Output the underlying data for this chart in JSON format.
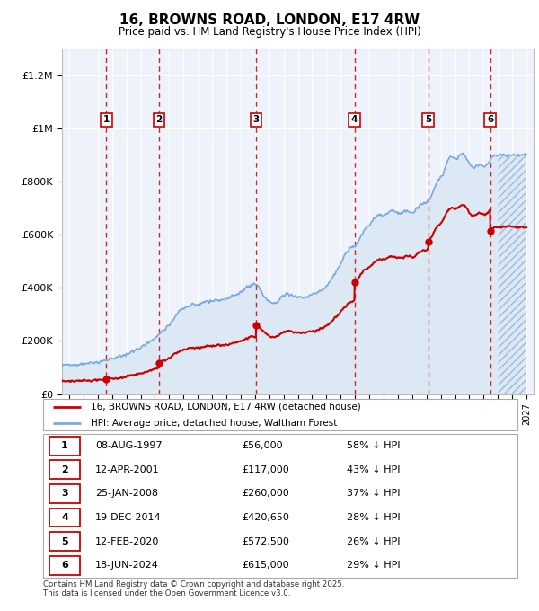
{
  "title": "16, BROWNS ROAD, LONDON, E17 4RW",
  "subtitle": "Price paid vs. HM Land Registry's House Price Index (HPI)",
  "ylim": [
    0,
    1300000
  ],
  "xlim": [
    1994.5,
    2027.5
  ],
  "yticks": [
    0,
    200000,
    400000,
    600000,
    800000,
    1000000,
    1200000
  ],
  "ytick_labels": [
    "£0",
    "£200K",
    "£400K",
    "£600K",
    "£800K",
    "£1M",
    "£1.2M"
  ],
  "xticks": [
    1995,
    1996,
    1997,
    1998,
    1999,
    2000,
    2001,
    2002,
    2003,
    2004,
    2005,
    2006,
    2007,
    2008,
    2009,
    2010,
    2011,
    2012,
    2013,
    2014,
    2015,
    2016,
    2017,
    2018,
    2019,
    2020,
    2021,
    2022,
    2023,
    2024,
    2025,
    2026,
    2027
  ],
  "sales": [
    {
      "date": 1997.6,
      "price": 56000,
      "label": "1"
    },
    {
      "date": 2001.28,
      "price": 117000,
      "label": "2"
    },
    {
      "date": 2008.07,
      "price": 260000,
      "label": "3"
    },
    {
      "date": 2014.97,
      "price": 420650,
      "label": "4"
    },
    {
      "date": 2020.12,
      "price": 572500,
      "label": "5"
    },
    {
      "date": 2024.46,
      "price": 615000,
      "label": "6"
    }
  ],
  "sale_color": "#cc0000",
  "hpi_color": "#7aaadd",
  "hpi_fill": "#dde8f5",
  "bg_color": "#eef2fa",
  "grid_color": "#ffffff",
  "vline_color": "#cc0000",
  "hpi_points": [
    [
      1995.0,
      110000
    ],
    [
      1995.08,
      109000
    ],
    [
      1995.17,
      109500
    ],
    [
      1995.25,
      110000
    ],
    [
      1995.33,
      110500
    ],
    [
      1995.42,
      111000
    ],
    [
      1995.5,
      111500
    ],
    [
      1995.58,
      112000
    ],
    [
      1995.67,
      112000
    ],
    [
      1995.75,
      112500
    ],
    [
      1995.83,
      113000
    ],
    [
      1995.92,
      113500
    ],
    [
      1996.0,
      114000
    ],
    [
      1996.08,
      114500
    ],
    [
      1996.17,
      115000
    ],
    [
      1996.25,
      115500
    ],
    [
      1996.33,
      116000
    ],
    [
      1996.42,
      116500
    ],
    [
      1996.5,
      117000
    ],
    [
      1996.58,
      117500
    ],
    [
      1996.67,
      118000
    ],
    [
      1996.75,
      118500
    ],
    [
      1996.83,
      119000
    ],
    [
      1996.92,
      119500
    ],
    [
      1997.0,
      120000
    ],
    [
      1997.08,
      121000
    ],
    [
      1997.17,
      122000
    ],
    [
      1997.25,
      123000
    ],
    [
      1997.33,
      124000
    ],
    [
      1997.42,
      125000
    ],
    [
      1997.5,
      126000
    ],
    [
      1997.58,
      127000
    ],
    [
      1997.67,
      128000
    ],
    [
      1997.75,
      129000
    ],
    [
      1997.83,
      130000
    ],
    [
      1997.92,
      131000
    ],
    [
      1998.0,
      132000
    ],
    [
      1998.08,
      133500
    ],
    [
      1998.17,
      135000
    ],
    [
      1998.25,
      136500
    ],
    [
      1998.33,
      138000
    ],
    [
      1998.42,
      139500
    ],
    [
      1998.5,
      141000
    ],
    [
      1998.58,
      142500
    ],
    [
      1998.67,
      144000
    ],
    [
      1998.75,
      145500
    ],
    [
      1998.83,
      147000
    ],
    [
      1998.92,
      148500
    ],
    [
      1999.0,
      150000
    ],
    [
      1999.08,
      152000
    ],
    [
      1999.17,
      154000
    ],
    [
      1999.25,
      156000
    ],
    [
      1999.33,
      158000
    ],
    [
      1999.42,
      160000
    ],
    [
      1999.5,
      162000
    ],
    [
      1999.58,
      164000
    ],
    [
      1999.67,
      166000
    ],
    [
      1999.75,
      168000
    ],
    [
      1999.83,
      170000
    ],
    [
      1999.92,
      172000
    ],
    [
      2000.0,
      175000
    ],
    [
      2000.08,
      178000
    ],
    [
      2000.17,
      181000
    ],
    [
      2000.25,
      184000
    ],
    [
      2000.33,
      187000
    ],
    [
      2000.42,
      190000
    ],
    [
      2000.5,
      193000
    ],
    [
      2000.58,
      196000
    ],
    [
      2000.67,
      199000
    ],
    [
      2000.75,
      202000
    ],
    [
      2000.83,
      205000
    ],
    [
      2000.92,
      208000
    ],
    [
      2001.0,
      212000
    ],
    [
      2001.08,
      216000
    ],
    [
      2001.17,
      220000
    ],
    [
      2001.25,
      224000
    ],
    [
      2001.33,
      228000
    ],
    [
      2001.42,
      232000
    ],
    [
      2001.5,
      236000
    ],
    [
      2001.58,
      240000
    ],
    [
      2001.67,
      244000
    ],
    [
      2001.75,
      248000
    ],
    [
      2001.83,
      252000
    ],
    [
      2001.92,
      256000
    ],
    [
      2002.0,
      262000
    ],
    [
      2002.08,
      268000
    ],
    [
      2002.17,
      274000
    ],
    [
      2002.25,
      280000
    ],
    [
      2002.33,
      286000
    ],
    [
      2002.42,
      292000
    ],
    [
      2002.5,
      298000
    ],
    [
      2002.58,
      303000
    ],
    [
      2002.67,
      308000
    ],
    [
      2002.75,
      312000
    ],
    [
      2002.83,
      316000
    ],
    [
      2002.92,
      319000
    ],
    [
      2003.0,
      322000
    ],
    [
      2003.08,
      325000
    ],
    [
      2003.17,
      327000
    ],
    [
      2003.25,
      329000
    ],
    [
      2003.33,
      331000
    ],
    [
      2003.42,
      333000
    ],
    [
      2003.5,
      334000
    ],
    [
      2003.58,
      335000
    ],
    [
      2003.67,
      336000
    ],
    [
      2003.75,
      337000
    ],
    [
      2003.83,
      338000
    ],
    [
      2003.92,
      339000
    ],
    [
      2004.0,
      340000
    ],
    [
      2004.08,
      341000
    ],
    [
      2004.17,
      342000
    ],
    [
      2004.25,
      343000
    ],
    [
      2004.33,
      344000
    ],
    [
      2004.42,
      345000
    ],
    [
      2004.5,
      346000
    ],
    [
      2004.58,
      347000
    ],
    [
      2004.67,
      348000
    ],
    [
      2004.75,
      349000
    ],
    [
      2004.83,
      350000
    ],
    [
      2004.92,
      350500
    ],
    [
      2005.0,
      351000
    ],
    [
      2005.08,
      351500
    ],
    [
      2005.17,
      352000
    ],
    [
      2005.25,
      352500
    ],
    [
      2005.33,
      353000
    ],
    [
      2005.42,
      353500
    ],
    [
      2005.5,
      354000
    ],
    [
      2005.58,
      354500
    ],
    [
      2005.67,
      355000
    ],
    [
      2005.75,
      355500
    ],
    [
      2005.83,
      356000
    ],
    [
      2005.92,
      356500
    ],
    [
      2006.0,
      358000
    ],
    [
      2006.08,
      360000
    ],
    [
      2006.17,
      362000
    ],
    [
      2006.25,
      364000
    ],
    [
      2006.33,
      366000
    ],
    [
      2006.42,
      368000
    ],
    [
      2006.5,
      370000
    ],
    [
      2006.58,
      372000
    ],
    [
      2006.67,
      374000
    ],
    [
      2006.75,
      376000
    ],
    [
      2006.83,
      378000
    ],
    [
      2006.92,
      380000
    ],
    [
      2007.0,
      385000
    ],
    [
      2007.08,
      390000
    ],
    [
      2007.17,
      393000
    ],
    [
      2007.25,
      396000
    ],
    [
      2007.33,
      399000
    ],
    [
      2007.42,
      402000
    ],
    [
      2007.5,
      405000
    ],
    [
      2007.58,
      408000
    ],
    [
      2007.67,
      410000
    ],
    [
      2007.75,
      412000
    ],
    [
      2007.83,
      413000
    ],
    [
      2007.92,
      414000
    ],
    [
      2008.0,
      415000
    ],
    [
      2008.08,
      412000
    ],
    [
      2008.17,
      408000
    ],
    [
      2008.25,
      403000
    ],
    [
      2008.33,
      397000
    ],
    [
      2008.42,
      390000
    ],
    [
      2008.5,
      383000
    ],
    [
      2008.58,
      376000
    ],
    [
      2008.67,
      369000
    ],
    [
      2008.75,
      363000
    ],
    [
      2008.83,
      357000
    ],
    [
      2008.92,
      352000
    ],
    [
      2009.0,
      348000
    ],
    [
      2009.08,
      345000
    ],
    [
      2009.17,
      343000
    ],
    [
      2009.25,
      342000
    ],
    [
      2009.33,
      342000
    ],
    [
      2009.42,
      343000
    ],
    [
      2009.5,
      345000
    ],
    [
      2009.58,
      348000
    ],
    [
      2009.67,
      352000
    ],
    [
      2009.75,
      357000
    ],
    [
      2009.83,
      362000
    ],
    [
      2009.92,
      367000
    ],
    [
      2010.0,
      372000
    ],
    [
      2010.08,
      374000
    ],
    [
      2010.17,
      375000
    ],
    [
      2010.25,
      376000
    ],
    [
      2010.33,
      376000
    ],
    [
      2010.42,
      375000
    ],
    [
      2010.5,
      374000
    ],
    [
      2010.58,
      373000
    ],
    [
      2010.67,
      372000
    ],
    [
      2010.75,
      371000
    ],
    [
      2010.83,
      370000
    ],
    [
      2010.92,
      369000
    ],
    [
      2011.0,
      368000
    ],
    [
      2011.08,
      367000
    ],
    [
      2011.17,
      366000
    ],
    [
      2011.25,
      366000
    ],
    [
      2011.33,
      366000
    ],
    [
      2011.42,
      366000
    ],
    [
      2011.5,
      367000
    ],
    [
      2011.58,
      368000
    ],
    [
      2011.67,
      369000
    ],
    [
      2011.75,
      370000
    ],
    [
      2011.83,
      371000
    ],
    [
      2011.92,
      373000
    ],
    [
      2012.0,
      375000
    ],
    [
      2012.08,
      377000
    ],
    [
      2012.17,
      379000
    ],
    [
      2012.25,
      381000
    ],
    [
      2012.33,
      383000
    ],
    [
      2012.42,
      385000
    ],
    [
      2012.5,
      387000
    ],
    [
      2012.58,
      390000
    ],
    [
      2012.67,
      393000
    ],
    [
      2012.75,
      396000
    ],
    [
      2012.83,
      399000
    ],
    [
      2012.92,
      403000
    ],
    [
      2013.0,
      408000
    ],
    [
      2013.08,
      413000
    ],
    [
      2013.17,
      419000
    ],
    [
      2013.25,
      425000
    ],
    [
      2013.33,
      432000
    ],
    [
      2013.42,
      439000
    ],
    [
      2013.5,
      446000
    ],
    [
      2013.58,
      453000
    ],
    [
      2013.67,
      460000
    ],
    [
      2013.75,
      468000
    ],
    [
      2013.83,
      476000
    ],
    [
      2013.92,
      484000
    ],
    [
      2014.0,
      493000
    ],
    [
      2014.08,
      502000
    ],
    [
      2014.17,
      511000
    ],
    [
      2014.25,
      520000
    ],
    [
      2014.33,
      528000
    ],
    [
      2014.42,
      535000
    ],
    [
      2014.5,
      541000
    ],
    [
      2014.58,
      546000
    ],
    [
      2014.67,
      550000
    ],
    [
      2014.75,
      553000
    ],
    [
      2014.83,
      555000
    ],
    [
      2014.92,
      557000
    ],
    [
      2015.0,
      560000
    ],
    [
      2015.08,
      565000
    ],
    [
      2015.17,
      572000
    ],
    [
      2015.25,
      580000
    ],
    [
      2015.33,
      589000
    ],
    [
      2015.42,
      598000
    ],
    [
      2015.5,
      607000
    ],
    [
      2015.58,
      615000
    ],
    [
      2015.67,
      622000
    ],
    [
      2015.75,
      627000
    ],
    [
      2015.83,
      630000
    ],
    [
      2015.92,
      632000
    ],
    [
      2016.0,
      635000
    ],
    [
      2016.08,
      640000
    ],
    [
      2016.17,
      647000
    ],
    [
      2016.25,
      654000
    ],
    [
      2016.33,
      660000
    ],
    [
      2016.42,
      665000
    ],
    [
      2016.5,
      669000
    ],
    [
      2016.58,
      672000
    ],
    [
      2016.67,
      674000
    ],
    [
      2016.75,
      675000
    ],
    [
      2016.83,
      675000
    ],
    [
      2016.92,
      674000
    ],
    [
      2017.0,
      673000
    ],
    [
      2017.08,
      674000
    ],
    [
      2017.17,
      676000
    ],
    [
      2017.25,
      679000
    ],
    [
      2017.33,
      683000
    ],
    [
      2017.42,
      686000
    ],
    [
      2017.5,
      688000
    ],
    [
      2017.58,
      689000
    ],
    [
      2017.67,
      689000
    ],
    [
      2017.75,
      688000
    ],
    [
      2017.83,
      686000
    ],
    [
      2017.92,
      684000
    ],
    [
      2018.0,
      682000
    ],
    [
      2018.08,
      681000
    ],
    [
      2018.17,
      681000
    ],
    [
      2018.25,
      682000
    ],
    [
      2018.33,
      684000
    ],
    [
      2018.42,
      687000
    ],
    [
      2018.5,
      689000
    ],
    [
      2018.58,
      690000
    ],
    [
      2018.67,
      690000
    ],
    [
      2018.75,
      689000
    ],
    [
      2018.83,
      687000
    ],
    [
      2018.92,
      685000
    ],
    [
      2019.0,
      684000
    ],
    [
      2019.08,
      685000
    ],
    [
      2019.17,
      688000
    ],
    [
      2019.25,
      692000
    ],
    [
      2019.33,
      697000
    ],
    [
      2019.42,
      702000
    ],
    [
      2019.5,
      707000
    ],
    [
      2019.58,
      711000
    ],
    [
      2019.67,
      714000
    ],
    [
      2019.75,
      716000
    ],
    [
      2019.83,
      717000
    ],
    [
      2019.92,
      718000
    ],
    [
      2020.0,
      720000
    ],
    [
      2020.08,
      724000
    ],
    [
      2020.17,
      730000
    ],
    [
      2020.25,
      738000
    ],
    [
      2020.33,
      748000
    ],
    [
      2020.42,
      759000
    ],
    [
      2020.5,
      771000
    ],
    [
      2020.58,
      782000
    ],
    [
      2020.67,
      792000
    ],
    [
      2020.75,
      800000
    ],
    [
      2020.83,
      806000
    ],
    [
      2020.92,
      811000
    ],
    [
      2021.0,
      816000
    ],
    [
      2021.08,
      823000
    ],
    [
      2021.17,
      832000
    ],
    [
      2021.25,
      843000
    ],
    [
      2021.33,
      856000
    ],
    [
      2021.42,
      868000
    ],
    [
      2021.5,
      878000
    ],
    [
      2021.58,
      886000
    ],
    [
      2021.67,
      890000
    ],
    [
      2021.75,
      891000
    ],
    [
      2021.83,
      890000
    ],
    [
      2021.92,
      888000
    ],
    [
      2022.0,
      886000
    ],
    [
      2022.08,
      886000
    ],
    [
      2022.17,
      888000
    ],
    [
      2022.25,
      892000
    ],
    [
      2022.33,
      897000
    ],
    [
      2022.42,
      901000
    ],
    [
      2022.5,
      903000
    ],
    [
      2022.58,
      903000
    ],
    [
      2022.67,
      900000
    ],
    [
      2022.75,
      894000
    ],
    [
      2022.83,
      886000
    ],
    [
      2022.92,
      877000
    ],
    [
      2023.0,
      868000
    ],
    [
      2023.08,
      861000
    ],
    [
      2023.17,
      856000
    ],
    [
      2023.25,
      854000
    ],
    [
      2023.33,
      854000
    ],
    [
      2023.42,
      856000
    ],
    [
      2023.5,
      859000
    ],
    [
      2023.58,
      862000
    ],
    [
      2023.67,
      864000
    ],
    [
      2023.75,
      864000
    ],
    [
      2023.83,
      862000
    ],
    [
      2023.92,
      860000
    ],
    [
      2024.0,
      858000
    ],
    [
      2024.08,
      858000
    ],
    [
      2024.17,
      860000
    ],
    [
      2024.25,
      864000
    ],
    [
      2024.33,
      870000
    ],
    [
      2024.42,
      877000
    ],
    [
      2024.5,
      884000
    ],
    [
      2024.58,
      890000
    ],
    [
      2024.67,
      894000
    ],
    [
      2024.75,
      897000
    ],
    [
      2024.83,
      899000
    ],
    [
      2024.92,
      900000
    ],
    [
      2025.0,
      900000
    ],
    [
      2025.5,
      900000
    ],
    [
      2026.0,
      900000
    ],
    [
      2026.5,
      900000
    ],
    [
      2027.0,
      900000
    ]
  ],
  "table_rows": [
    {
      "num": "1",
      "date": "08-AUG-1997",
      "price": "£56,000",
      "note": "58% ↓ HPI"
    },
    {
      "num": "2",
      "date": "12-APR-2001",
      "price": "£117,000",
      "note": "43% ↓ HPI"
    },
    {
      "num": "3",
      "date": "25-JAN-2008",
      "price": "£260,000",
      "note": "37% ↓ HPI"
    },
    {
      "num": "4",
      "date": "19-DEC-2014",
      "price": "£420,650",
      "note": "28% ↓ HPI"
    },
    {
      "num": "5",
      "date": "12-FEB-2020",
      "price": "£572,500",
      "note": "26% ↓ HPI"
    },
    {
      "num": "6",
      "date": "18-JUN-2024",
      "price": "£615,000",
      "note": "29% ↓ HPI"
    }
  ],
  "legend_items": [
    {
      "label": "16, BROWNS ROAD, LONDON, E17 4RW (detached house)",
      "color": "#cc0000"
    },
    {
      "label": "HPI: Average price, detached house, Waltham Forest",
      "color": "#7aaadd"
    }
  ],
  "footnote": "Contains HM Land Registry data © Crown copyright and database right 2025.\nThis data is licensed under the Open Government Licence v3.0."
}
